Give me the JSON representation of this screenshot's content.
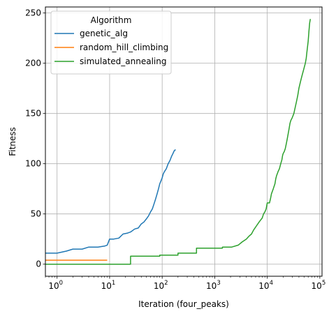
{
  "chart_data": {
    "type": "line",
    "xlabel": "Iteration (four_peaks)",
    "ylabel": "Fitness",
    "xscale": "log",
    "xlim": [
      0.6,
      110000
    ],
    "ylim": [
      -12,
      256
    ],
    "grid": true,
    "x_ticks": [
      {
        "value": 1,
        "base": "10",
        "exp": "0"
      },
      {
        "value": 10,
        "base": "10",
        "exp": "1"
      },
      {
        "value": 100,
        "base": "10",
        "exp": "2"
      },
      {
        "value": 1000,
        "base": "10",
        "exp": "3"
      },
      {
        "value": 10000,
        "base": "10",
        "exp": "4"
      },
      {
        "value": 100000,
        "base": "10",
        "exp": "5"
      }
    ],
    "y_ticks": [
      0,
      50,
      100,
      150,
      200,
      250
    ],
    "legend": {
      "title": "Algorithm",
      "position": "top-left"
    },
    "series": [
      {
        "name": "genetic_alg",
        "color": "#1f77b4",
        "points": [
          [
            0.5,
            11
          ],
          [
            1,
            11
          ],
          [
            1.5,
            13
          ],
          [
            2,
            15
          ],
          [
            3,
            15
          ],
          [
            4,
            17
          ],
          [
            6,
            17
          ],
          [
            8,
            18
          ],
          [
            9,
            19
          ],
          [
            10,
            25
          ],
          [
            12,
            25
          ],
          [
            15,
            26
          ],
          [
            18,
            30
          ],
          [
            22,
            31
          ],
          [
            25,
            32
          ],
          [
            30,
            35
          ],
          [
            35,
            36
          ],
          [
            40,
            40
          ],
          [
            45,
            42
          ],
          [
            50,
            45
          ],
          [
            55,
            48
          ],
          [
            60,
            52
          ],
          [
            65,
            55
          ],
          [
            70,
            60
          ],
          [
            75,
            65
          ],
          [
            80,
            70
          ],
          [
            85,
            75
          ],
          [
            90,
            80
          ],
          [
            95,
            83
          ],
          [
            100,
            86
          ],
          [
            105,
            90
          ],
          [
            110,
            92
          ],
          [
            120,
            95
          ],
          [
            130,
            100
          ],
          [
            140,
            103
          ],
          [
            150,
            107
          ],
          [
            160,
            110
          ],
          [
            170,
            113
          ],
          [
            180,
            114
          ]
        ]
      },
      {
        "name": "random_hill_climbing",
        "color": "#ff7f0e",
        "points": [
          [
            0.5,
            4
          ],
          [
            9,
            4
          ]
        ]
      },
      {
        "name": "simulated_annealing",
        "color": "#2ca02c",
        "points": [
          [
            0.5,
            0
          ],
          [
            25,
            0
          ],
          [
            25,
            8
          ],
          [
            90,
            8
          ],
          [
            90,
            9
          ],
          [
            200,
            9
          ],
          [
            200,
            11
          ],
          [
            450,
            11
          ],
          [
            450,
            16
          ],
          [
            1400,
            16
          ],
          [
            1400,
            17
          ],
          [
            2100,
            17
          ],
          [
            2800,
            19
          ],
          [
            3300,
            22
          ],
          [
            4000,
            25
          ],
          [
            4500,
            28
          ],
          [
            5000,
            30
          ],
          [
            5500,
            34
          ],
          [
            6200,
            38
          ],
          [
            7000,
            42
          ],
          [
            8000,
            46
          ],
          [
            8500,
            50
          ],
          [
            9000,
            52
          ],
          [
            9500,
            55
          ],
          [
            10000,
            61
          ],
          [
            11000,
            61
          ],
          [
            11500,
            65
          ],
          [
            12000,
            70
          ],
          [
            13000,
            75
          ],
          [
            14000,
            80
          ],
          [
            14500,
            85
          ],
          [
            15000,
            88
          ],
          [
            16000,
            92
          ],
          [
            17000,
            95
          ],
          [
            18000,
            100
          ],
          [
            19000,
            104
          ],
          [
            19500,
            108
          ],
          [
            20000,
            110
          ],
          [
            21000,
            112
          ],
          [
            22000,
            115
          ],
          [
            23000,
            120
          ],
          [
            24000,
            125
          ],
          [
            25000,
            130
          ],
          [
            26000,
            135
          ],
          [
            27000,
            140
          ],
          [
            28000,
            143
          ],
          [
            30000,
            146
          ],
          [
            32000,
            150
          ],
          [
            34000,
            156
          ],
          [
            36000,
            162
          ],
          [
            38000,
            168
          ],
          [
            40000,
            175
          ],
          [
            43000,
            182
          ],
          [
            46000,
            188
          ],
          [
            50000,
            195
          ],
          [
            53000,
            200
          ],
          [
            55000,
            205
          ],
          [
            57000,
            212
          ],
          [
            60000,
            222
          ],
          [
            62000,
            232
          ],
          [
            64000,
            240
          ],
          [
            66000,
            244
          ]
        ]
      }
    ]
  }
}
